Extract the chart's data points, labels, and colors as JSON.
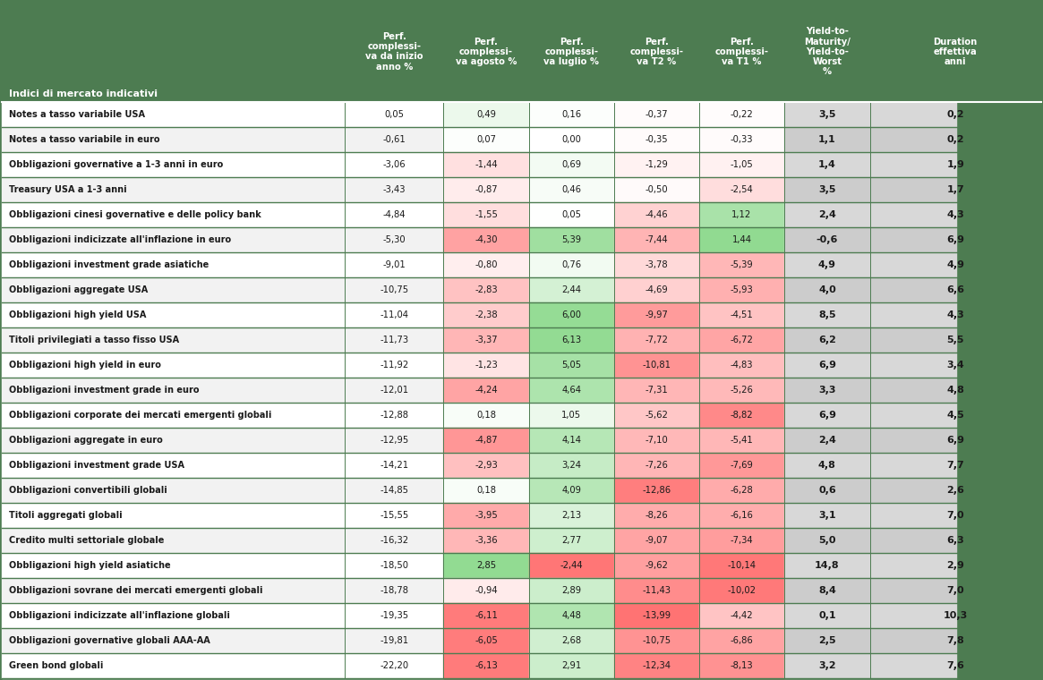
{
  "headers": [
    "Indici di mercato indicativi",
    "Perf.\ncomplessi-\nva da inizio\nanno %",
    "Perf.\ncomplessi-\nva agosto %",
    "Perf.\ncomplessi-\nva luglio %",
    "Perf.\ncomplessi-\nva T2 %",
    "Perf.\ncomplessi-\nva T1 %",
    "Yield-to-\nMaturity/\nYield-to-\nWorst\n%",
    "Duration\neffettiva\nanni"
  ],
  "rows": [
    [
      "Notes a tasso variabile USA",
      "0,05",
      "0,49",
      "0,16",
      "-0,37",
      "-0,22",
      "3,5",
      "0,2"
    ],
    [
      "Notes a tasso variabile in euro",
      "-0,61",
      "0,07",
      "0,00",
      "-0,35",
      "-0,33",
      "1,1",
      "0,2"
    ],
    [
      "Obbligazioni governative a 1-3 anni in euro",
      "-3,06",
      "-1,44",
      "0,69",
      "-1,29",
      "-1,05",
      "1,4",
      "1,9"
    ],
    [
      "Treasury USA a 1-3 anni",
      "-3,43",
      "-0,87",
      "0,46",
      "-0,50",
      "-2,54",
      "3,5",
      "1,7"
    ],
    [
      "Obbligazioni cinesi governative e delle policy bank",
      "-4,84",
      "-1,55",
      "0,05",
      "-4,46",
      "1,12",
      "2,4",
      "4,3"
    ],
    [
      "Obbligazioni indicizzate all'inflazione in euro",
      "-5,30",
      "-4,30",
      "5,39",
      "-7,44",
      "1,44",
      "-0,6",
      "6,9"
    ],
    [
      "Obbligazioni investment grade asiatiche",
      "-9,01",
      "-0,80",
      "0,76",
      "-3,78",
      "-5,39",
      "4,9",
      "4,9"
    ],
    [
      "Obbligazioni aggregate USA",
      "-10,75",
      "-2,83",
      "2,44",
      "-4,69",
      "-5,93",
      "4,0",
      "6,6"
    ],
    [
      "Obbligazioni high yield USA",
      "-11,04",
      "-2,38",
      "6,00",
      "-9,97",
      "-4,51",
      "8,5",
      "4,3"
    ],
    [
      "Titoli privilegiati a tasso fisso USA",
      "-11,73",
      "-3,37",
      "6,13",
      "-7,72",
      "-6,72",
      "6,2",
      "5,5"
    ],
    [
      "Obbligazioni high yield in euro",
      "-11,92",
      "-1,23",
      "5,05",
      "-10,81",
      "-4,83",
      "6,9",
      "3,4"
    ],
    [
      "Obbligazioni investment grade in euro",
      "-12,01",
      "-4,24",
      "4,64",
      "-7,31",
      "-5,26",
      "3,3",
      "4,8"
    ],
    [
      "Obbligazioni corporate dei mercati emergenti globali",
      "-12,88",
      "0,18",
      "1,05",
      "-5,62",
      "-8,82",
      "6,9",
      "4,5"
    ],
    [
      "Obbligazioni aggregate in euro",
      "-12,95",
      "-4,87",
      "4,14",
      "-7,10",
      "-5,41",
      "2,4",
      "6,9"
    ],
    [
      "Obbligazioni investment grade USA",
      "-14,21",
      "-2,93",
      "3,24",
      "-7,26",
      "-7,69",
      "4,8",
      "7,7"
    ],
    [
      "Obbligazioni convertibili globali",
      "-14,85",
      "0,18",
      "4,09",
      "-12,86",
      "-6,28",
      "0,6",
      "2,6"
    ],
    [
      "Titoli aggregati globali",
      "-15,55",
      "-3,95",
      "2,13",
      "-8,26",
      "-6,16",
      "3,1",
      "7,0"
    ],
    [
      "Credito multi settoriale globale",
      "-16,32",
      "-3,36",
      "2,77",
      "-9,07",
      "-7,34",
      "5,0",
      "6,3"
    ],
    [
      "Obbligazioni high yield asiatiche",
      "-18,50",
      "2,85",
      "-2,44",
      "-9,62",
      "-10,14",
      "14,8",
      "2,9"
    ],
    [
      "Obbligazioni sovrane dei mercati emergenti globali",
      "-18,78",
      "-0,94",
      "2,89",
      "-11,43",
      "-10,02",
      "8,4",
      "7,0"
    ],
    [
      "Obbligazioni indicizzate all'inflazione globali",
      "-19,35",
      "-6,11",
      "4,48",
      "-13,99",
      "-4,42",
      "0,1",
      "10,3"
    ],
    [
      "Obbligazioni governative globali AAA-AA",
      "-19,81",
      "-6,05",
      "2,68",
      "-10,75",
      "-6,86",
      "2,5",
      "7,8"
    ],
    [
      "Green bond globali",
      "-22,20",
      "-6,13",
      "2,91",
      "-12,34",
      "-8,13",
      "3,2",
      "7,6"
    ]
  ],
  "col_numeric_values": [
    [
      0.05,
      0.49,
      0.16,
      -0.37,
      -0.22
    ],
    [
      -0.61,
      0.07,
      0.0,
      -0.35,
      -0.33
    ],
    [
      -3.06,
      -1.44,
      0.69,
      -1.29,
      -1.05
    ],
    [
      -3.43,
      -0.87,
      0.46,
      -0.5,
      -2.54
    ],
    [
      -4.84,
      -1.55,
      0.05,
      -4.46,
      1.12
    ],
    [
      -5.3,
      -4.3,
      5.39,
      -7.44,
      1.44
    ],
    [
      -9.01,
      -0.8,
      0.76,
      -3.78,
      -5.39
    ],
    [
      -10.75,
      -2.83,
      2.44,
      -4.69,
      -5.93
    ],
    [
      -11.04,
      -2.38,
      6.0,
      -9.97,
      -4.51
    ],
    [
      -11.73,
      -3.37,
      6.13,
      -7.72,
      -6.72
    ],
    [
      -11.92,
      -1.23,
      5.05,
      -10.81,
      -4.83
    ],
    [
      -12.01,
      -4.24,
      4.64,
      -7.31,
      -5.26
    ],
    [
      -12.88,
      0.18,
      1.05,
      -5.62,
      -8.82
    ],
    [
      -12.95,
      -4.87,
      4.14,
      -7.1,
      -5.41
    ],
    [
      -14.21,
      -2.93,
      3.24,
      -7.26,
      -7.69
    ],
    [
      -14.85,
      0.18,
      4.09,
      -12.86,
      -6.28
    ],
    [
      -15.55,
      -3.95,
      2.13,
      -8.26,
      -6.16
    ],
    [
      -16.32,
      -3.36,
      2.77,
      -9.07,
      -7.34
    ],
    [
      -18.5,
      2.85,
      -2.44,
      -9.62,
      -10.14
    ],
    [
      -18.78,
      -0.94,
      2.89,
      -11.43,
      -10.02
    ],
    [
      -19.35,
      -6.11,
      4.48,
      -13.99,
      -4.42
    ],
    [
      -19.81,
      -6.05,
      2.68,
      -10.75,
      -6.86
    ],
    [
      -22.2,
      -6.13,
      2.91,
      -12.34,
      -8.13
    ]
  ],
  "background_color": "#4d7c51",
  "separator_color": "#4d7c51",
  "row_bg_white": "#ffffff",
  "row_bg_light": "#f2f2f2",
  "ytm_dur_bg_white": "#d8d8d8",
  "ytm_dur_bg_light": "#cccccc",
  "anno_col_bg_white": "#ffffff",
  "anno_col_bg_light": "#f2f2f2"
}
